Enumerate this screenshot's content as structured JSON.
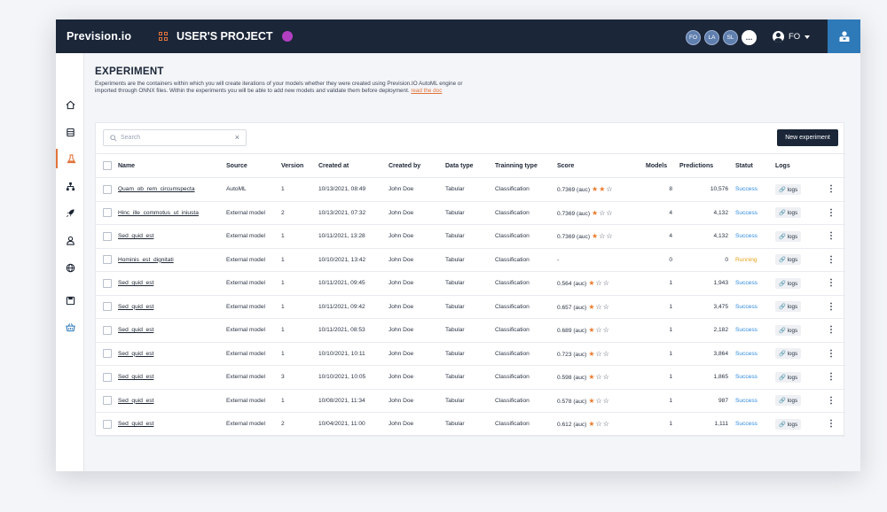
{
  "app": {
    "brand": "Prevision.io",
    "project_title": "USER'S PROJECT",
    "project_color": "#b23fc2",
    "avatars": [
      "FO",
      "LA",
      "SL",
      "…"
    ],
    "user_initials": "FO"
  },
  "sidebar": {
    "items": [
      {
        "icon": "home-icon"
      },
      {
        "icon": "database-icon"
      },
      {
        "icon": "flask-icon",
        "active": true
      },
      {
        "icon": "hierarchy-icon"
      },
      {
        "icon": "rocket-icon"
      },
      {
        "icon": "user-icon"
      },
      {
        "icon": "globe-icon"
      },
      {
        "icon": "save-icon"
      },
      {
        "icon": "basket-icon"
      }
    ]
  },
  "page": {
    "title": "EXPERIMENT",
    "description": "Experiments are the containers within which you will create iterations of your models whether they were created using Prevision.IO AutoML engine or imported through ONNX files. Within the experiments you will be able to add new models and validate them before deployment.",
    "doc_link": "read the doc"
  },
  "toolbar": {
    "search_placeholder": "Search",
    "clear_label": "×",
    "new_experiment_label": "New experiment"
  },
  "table": {
    "columns": [
      "Name",
      "Source",
      "Version",
      "Created at",
      "Created by",
      "Data type",
      "Trainning type",
      "Score",
      "Models",
      "Predictions",
      "Statut",
      "Logs"
    ],
    "rows": [
      {
        "name": "Quam_ob_rem_circumspecta",
        "source": "AutoML",
        "version": "1",
        "created_at": "10/13/2021, 08:49",
        "created_by": "John Doe",
        "data_type": "Tabular",
        "training_type": "Classification",
        "score": "0.7369 (auc)",
        "stars": 2,
        "models": "8",
        "predictions": "10,576",
        "status": "Success",
        "logs": "logs"
      },
      {
        "name": "Hinc_ille_commotus_ut_iniusta",
        "source": "External model",
        "version": "2",
        "created_at": "10/13/2021, 07:32",
        "created_by": "John Doe",
        "data_type": "Tabular",
        "training_type": "Classification",
        "score": "0.7369 (auc)",
        "stars": 1,
        "models": "4",
        "predictions": "4,132",
        "status": "Success",
        "logs": "logs"
      },
      {
        "name": "Sed_quid_est",
        "source": "External model",
        "version": "1",
        "created_at": "10/11/2021, 13:28",
        "created_by": "John Doe",
        "data_type": "Tabular",
        "training_type": "Classification",
        "score": "0.7369 (auc)",
        "stars": 1,
        "models": "4",
        "predictions": "4,132",
        "status": "Success",
        "logs": "logs"
      },
      {
        "name": "Hominis_est_dignitati",
        "source": "External model",
        "version": "1",
        "created_at": "10/10/2021, 13:42",
        "created_by": "John Doe",
        "data_type": "Tabular",
        "training_type": "Classification",
        "score": "-",
        "stars": 0,
        "models": "0",
        "predictions": "0",
        "status": "Running",
        "logs": "logs"
      },
      {
        "name": "Sed_quid_est",
        "source": "External model",
        "version": "1",
        "created_at": "10/11/2021, 09:45",
        "created_by": "John Doe",
        "data_type": "Tabular",
        "training_type": "Classification",
        "score": "0.564 (auc)",
        "stars": 1,
        "models": "1",
        "predictions": "1,943",
        "status": "Success",
        "logs": "logs"
      },
      {
        "name": "Sed_quid_est",
        "source": "External model",
        "version": "1",
        "created_at": "10/11/2021, 09:42",
        "created_by": "John Doe",
        "data_type": "Tabular",
        "training_type": "Classification",
        "score": "0.657 (auc)",
        "stars": 1,
        "models": "1",
        "predictions": "3,475",
        "status": "Success",
        "logs": "logs"
      },
      {
        "name": "Sed_quid_est",
        "source": "External model",
        "version": "1",
        "created_at": "10/11/2021, 08:53",
        "created_by": "John Doe",
        "data_type": "Tabular",
        "training_type": "Classification",
        "score": "0.689 (auc)",
        "stars": 1,
        "models": "1",
        "predictions": "2,182",
        "status": "Success",
        "logs": "logs"
      },
      {
        "name": "Sed_quid_est",
        "source": "External model",
        "version": "1",
        "created_at": "10/10/2021, 10:11",
        "created_by": "John Doe",
        "data_type": "Tabular",
        "training_type": "Classification",
        "score": "0.723 (auc)",
        "stars": 1,
        "models": "1",
        "predictions": "3,864",
        "status": "Success",
        "logs": "logs"
      },
      {
        "name": "Sed_quid_est",
        "source": "External model",
        "version": "3",
        "created_at": "10/10/2021, 10:05",
        "created_by": "John Doe",
        "data_type": "Tabular",
        "training_type": "Classification",
        "score": "0.598 (auc)",
        "stars": 1,
        "models": "1",
        "predictions": "1,865",
        "status": "Success",
        "logs": "logs"
      },
      {
        "name": "Sed_quid_est",
        "source": "External model",
        "version": "1",
        "created_at": "10/08/2021, 11:34",
        "created_by": "John Doe",
        "data_type": "Tabular",
        "training_type": "Classification",
        "score": "0.578 (auc)",
        "stars": 1,
        "models": "1",
        "predictions": "987",
        "status": "Success",
        "logs": "logs"
      },
      {
        "name": "Sed_quid_est",
        "source": "External model",
        "version": "2",
        "created_at": "10/04/2021, 11:00",
        "created_by": "John Doe",
        "data_type": "Tabular",
        "training_type": "Classification",
        "score": "0.612 (auc)",
        "stars": 1,
        "models": "1",
        "predictions": "1,111",
        "status": "Success",
        "logs": "logs"
      }
    ]
  },
  "colors": {
    "topbar": "#1b2638",
    "accent": "#e1733a",
    "corner_button": "#2e79b8",
    "success": "#2f8ae0",
    "running": "#e3a21a"
  }
}
